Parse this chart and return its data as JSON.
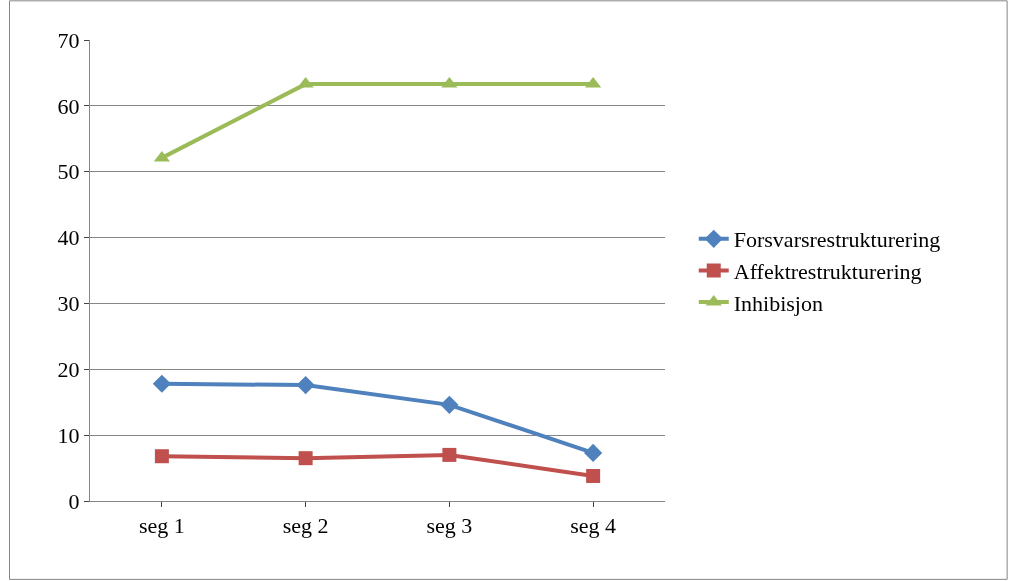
{
  "chart_data": {
    "type": "line",
    "categories": [
      "seg 1",
      "seg 2",
      "seg 3",
      "seg 4"
    ],
    "series": [
      {
        "name": "Forsvarsrestrukturering",
        "color": "#4f81bd",
        "marker": "diamond",
        "values": [
          17.8,
          17.6,
          14.6,
          7.3
        ]
      },
      {
        "name": "Affektrestrukturering",
        "color": "#c0504d",
        "marker": "square",
        "values": [
          6.8,
          6.5,
          7.0,
          3.8
        ]
      },
      {
        "name": "Inhibisjon",
        "color": "#9bbb59",
        "marker": "triangle",
        "values": [
          52.1,
          63.3,
          63.3,
          63.3
        ]
      }
    ],
    "ylim": [
      0,
      70
    ],
    "yticks": [
      0,
      10,
      20,
      30,
      40,
      50,
      60,
      70
    ],
    "grid": "y",
    "legend": "right",
    "line_style": "solid"
  }
}
